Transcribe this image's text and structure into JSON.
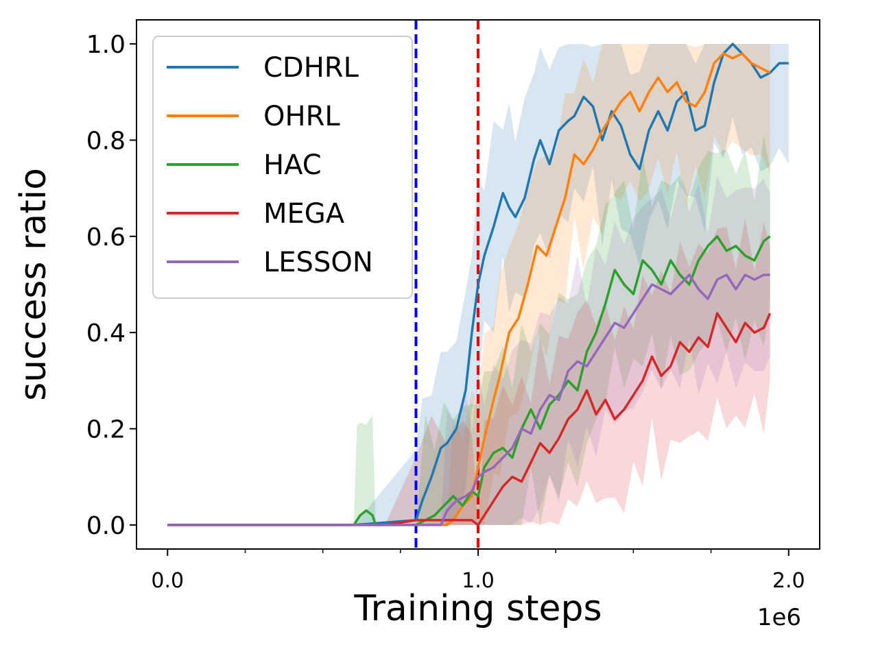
{
  "chart_data": {
    "type": "line",
    "xlabel": "Training  steps",
    "ylabel": "success ratio",
    "x_offset_label": "1e6",
    "xlim": [
      -0.1,
      2.1
    ],
    "ylim": [
      -0.05,
      1.05
    ],
    "x_ticks": [
      0.0,
      1.0,
      2.0
    ],
    "x_tick_labels": [
      "0.0",
      "1.0",
      "2.0"
    ],
    "x_minor_ticks": [
      0.25,
      0.5,
      0.75,
      1.25,
      1.5,
      1.75
    ],
    "y_ticks": [
      0.0,
      0.2,
      0.4,
      0.6,
      0.8,
      1.0
    ],
    "y_tick_labels": [
      "0.0",
      "0.2",
      "0.4",
      "0.6",
      "0.8",
      "1.0"
    ],
    "grid": false,
    "legend_position": "top-left",
    "vlines": [
      {
        "x": 0.8,
        "color": "#0000ff",
        "style": "dashed"
      },
      {
        "x": 1.0,
        "color": "#ff0000",
        "style": "dashed"
      }
    ],
    "series": [
      {
        "name": "CDHRL",
        "color": "#1f77b4",
        "x": [
          0.0,
          0.6,
          0.8,
          0.82,
          0.85,
          0.88,
          0.9,
          0.93,
          0.96,
          0.98,
          1.0,
          1.02,
          1.05,
          1.08,
          1.1,
          1.12,
          1.15,
          1.18,
          1.2,
          1.23,
          1.26,
          1.29,
          1.31,
          1.34,
          1.37,
          1.4,
          1.43,
          1.46,
          1.49,
          1.52,
          1.55,
          1.58,
          1.61,
          1.64,
          1.67,
          1.7,
          1.73,
          1.76,
          1.79,
          1.82,
          1.85,
          1.88,
          1.91,
          1.94,
          1.97,
          2.0
        ],
        "y": [
          0.0,
          0.0,
          0.01,
          0.05,
          0.1,
          0.16,
          0.17,
          0.2,
          0.28,
          0.4,
          0.5,
          0.56,
          0.62,
          0.69,
          0.66,
          0.64,
          0.68,
          0.76,
          0.8,
          0.75,
          0.82,
          0.84,
          0.85,
          0.89,
          0.87,
          0.8,
          0.86,
          0.83,
          0.77,
          0.74,
          0.82,
          0.86,
          0.82,
          0.88,
          0.9,
          0.82,
          0.83,
          0.92,
          0.98,
          1.0,
          0.98,
          0.96,
          0.93,
          0.94,
          0.96,
          0.96
        ]
      },
      {
        "name": "OHRL",
        "color": "#ff7f0e",
        "x": [
          0.0,
          0.9,
          0.92,
          0.95,
          0.98,
          1.0,
          1.02,
          1.05,
          1.07,
          1.1,
          1.13,
          1.16,
          1.19,
          1.22,
          1.25,
          1.28,
          1.31,
          1.34,
          1.37,
          1.4,
          1.43,
          1.46,
          1.49,
          1.52,
          1.55,
          1.58,
          1.61,
          1.64,
          1.67,
          1.7,
          1.73,
          1.76,
          1.79,
          1.82,
          1.85,
          1.88,
          1.91,
          1.94
        ],
        "y": [
          0.0,
          0.0,
          0.01,
          0.04,
          0.06,
          0.12,
          0.18,
          0.26,
          0.31,
          0.4,
          0.43,
          0.5,
          0.58,
          0.56,
          0.62,
          0.68,
          0.77,
          0.75,
          0.78,
          0.82,
          0.85,
          0.88,
          0.9,
          0.86,
          0.9,
          0.93,
          0.9,
          0.92,
          0.88,
          0.87,
          0.9,
          0.96,
          0.98,
          0.97,
          0.98,
          0.96,
          0.95,
          0.94
        ]
      },
      {
        "name": "HAC",
        "color": "#2ca02c",
        "x": [
          0.0,
          0.6,
          0.61,
          0.62,
          0.64,
          0.66,
          0.67,
          0.7,
          0.8,
          0.83,
          0.86,
          0.89,
          0.92,
          0.95,
          0.98,
          1.0,
          1.02,
          1.05,
          1.08,
          1.11,
          1.14,
          1.17,
          1.2,
          1.23,
          1.26,
          1.29,
          1.32,
          1.35,
          1.38,
          1.41,
          1.44,
          1.47,
          1.5,
          1.53,
          1.56,
          1.59,
          1.62,
          1.65,
          1.68,
          1.71,
          1.74,
          1.77,
          1.8,
          1.83,
          1.86,
          1.89,
          1.92,
          1.94
        ],
        "y": [
          0.0,
          0.0,
          0.01,
          0.02,
          0.03,
          0.02,
          0.0,
          0.0,
          0.0,
          0.01,
          0.02,
          0.04,
          0.06,
          0.04,
          0.07,
          0.06,
          0.12,
          0.15,
          0.16,
          0.14,
          0.2,
          0.24,
          0.2,
          0.25,
          0.27,
          0.3,
          0.28,
          0.36,
          0.4,
          0.46,
          0.53,
          0.5,
          0.48,
          0.55,
          0.53,
          0.5,
          0.55,
          0.52,
          0.5,
          0.55,
          0.58,
          0.6,
          0.57,
          0.58,
          0.56,
          0.55,
          0.59,
          0.6
        ]
      },
      {
        "name": "MEGA",
        "color": "#d62728",
        "x": [
          0.0,
          0.7,
          0.8,
          0.85,
          0.9,
          0.95,
          0.98,
          1.0,
          1.02,
          1.05,
          1.08,
          1.11,
          1.14,
          1.17,
          1.2,
          1.23,
          1.26,
          1.29,
          1.32,
          1.35,
          1.38,
          1.41,
          1.44,
          1.47,
          1.5,
          1.53,
          1.56,
          1.59,
          1.62,
          1.65,
          1.68,
          1.71,
          1.74,
          1.77,
          1.8,
          1.83,
          1.86,
          1.89,
          1.92,
          1.94
        ],
        "y": [
          0.0,
          0.0,
          0.01,
          0.01,
          0.01,
          0.01,
          0.01,
          0.0,
          0.02,
          0.05,
          0.08,
          0.1,
          0.09,
          0.13,
          0.17,
          0.15,
          0.18,
          0.22,
          0.24,
          0.28,
          0.23,
          0.26,
          0.22,
          0.24,
          0.27,
          0.3,
          0.35,
          0.31,
          0.33,
          0.38,
          0.36,
          0.39,
          0.37,
          0.44,
          0.41,
          0.38,
          0.42,
          0.4,
          0.41,
          0.44
        ]
      },
      {
        "name": "LESSON",
        "color": "#9467bd",
        "x": [
          0.0,
          0.88,
          0.9,
          0.93,
          0.96,
          0.98,
          1.0,
          1.02,
          1.05,
          1.08,
          1.11,
          1.14,
          1.17,
          1.2,
          1.23,
          1.26,
          1.29,
          1.32,
          1.35,
          1.38,
          1.41,
          1.44,
          1.47,
          1.5,
          1.53,
          1.56,
          1.59,
          1.62,
          1.65,
          1.68,
          1.71,
          1.74,
          1.77,
          1.8,
          1.83,
          1.86,
          1.89,
          1.92,
          1.94
        ],
        "y": [
          0.0,
          0.0,
          0.03,
          0.05,
          0.06,
          0.07,
          0.1,
          0.11,
          0.12,
          0.14,
          0.16,
          0.2,
          0.19,
          0.24,
          0.27,
          0.26,
          0.32,
          0.34,
          0.33,
          0.36,
          0.39,
          0.42,
          0.41,
          0.44,
          0.47,
          0.5,
          0.49,
          0.48,
          0.5,
          0.52,
          0.49,
          0.47,
          0.51,
          0.52,
          0.49,
          0.52,
          0.51,
          0.52,
          0.52
        ]
      }
    ]
  }
}
